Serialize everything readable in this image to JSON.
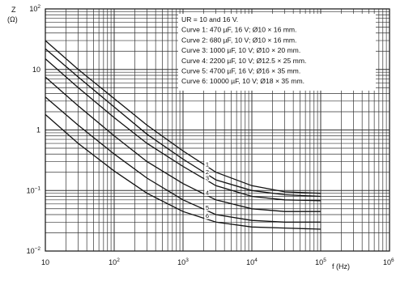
{
  "chart_data": {
    "type": "line",
    "title": "",
    "xlabel": "f (Hz)",
    "ylabel": "Z",
    "ylabel_unit": "(Ω)",
    "x_scale": "log",
    "y_scale": "log",
    "xlim": [
      10,
      1000000
    ],
    "ylim": [
      0.01,
      100
    ],
    "grid": true,
    "x_ticks": [
      {
        "value": 10,
        "label": "10",
        "exp": ""
      },
      {
        "value": 100,
        "label": "10",
        "exp": "2"
      },
      {
        "value": 1000,
        "label": "10",
        "exp": "3"
      },
      {
        "value": 10000,
        "label": "10",
        "exp": "4"
      },
      {
        "value": 100000,
        "label": "10",
        "exp": "5"
      }
    ],
    "y_ticks": [
      {
        "value": 100,
        "label": "10",
        "exp": "2"
      },
      {
        "value": 10,
        "label": "10",
        "exp": ""
      },
      {
        "value": 1,
        "label": "1",
        "exp": ""
      },
      {
        "value": 0.1,
        "label": "10",
        "exp": "−1"
      },
      {
        "value": 0.01,
        "label": "10",
        "exp": "−2"
      }
    ],
    "legend_placement": "top-right",
    "legend_lines": [
      "UR = 10 and 16 V.",
      "Curve 1: 470 µF, 16 V; Ø10 × 16 mm.",
      "Curve 2: 680 µF, 10 V; Ø10 × 16 mm.",
      "Curve 3: 1000 µF, 10 V; Ø10 × 20 mm.",
      "Curve 4: 2200 µF, 10 V; Ø12.5 × 25 mm.",
      "Curve 5: 4700 µF, 16 V; Ø16 × 35 mm.",
      "Curve 6: 10000 µF, 10 V; Ø18 × 35 mm."
    ],
    "series": [
      {
        "name": "1",
        "x": [
          10,
          30,
          100,
          300,
          1000,
          3000,
          10000,
          30000,
          100000
        ],
        "y": [
          30,
          10,
          3.3,
          1.2,
          0.45,
          0.2,
          0.12,
          0.095,
          0.09
        ],
        "label_at": 2500
      },
      {
        "name": "2",
        "x": [
          10,
          30,
          100,
          300,
          1000,
          3000,
          10000,
          30000,
          100000
        ],
        "y": [
          22,
          7.5,
          2.4,
          0.85,
          0.33,
          0.15,
          0.1,
          0.085,
          0.08
        ],
        "label_at": 2500
      },
      {
        "name": "3",
        "x": [
          10,
          30,
          100,
          300,
          1000,
          3000,
          10000,
          30000,
          100000
        ],
        "y": [
          15,
          5,
          1.6,
          0.6,
          0.25,
          0.12,
          0.08,
          0.07,
          0.068
        ],
        "label_at": 2500
      },
      {
        "name": "4",
        "x": [
          10,
          30,
          100,
          300,
          1000,
          3000,
          10000,
          30000,
          100000
        ],
        "y": [
          7.5,
          2.5,
          0.8,
          0.3,
          0.13,
          0.07,
          0.05,
          0.045,
          0.045
        ],
        "label_at": 2500
      },
      {
        "name": "5",
        "x": [
          10,
          30,
          100,
          300,
          1000,
          3000,
          10000,
          30000,
          100000
        ],
        "y": [
          3.5,
          1.2,
          0.4,
          0.16,
          0.07,
          0.04,
          0.032,
          0.03,
          0.03
        ],
        "label_at": 2500
      },
      {
        "name": "6",
        "x": [
          10,
          30,
          100,
          300,
          1000,
          3000,
          10000,
          30000,
          100000
        ],
        "y": [
          1.8,
          0.6,
          0.21,
          0.09,
          0.045,
          0.03,
          0.025,
          0.024,
          0.023
        ],
        "label_at": 2500
      }
    ]
  }
}
